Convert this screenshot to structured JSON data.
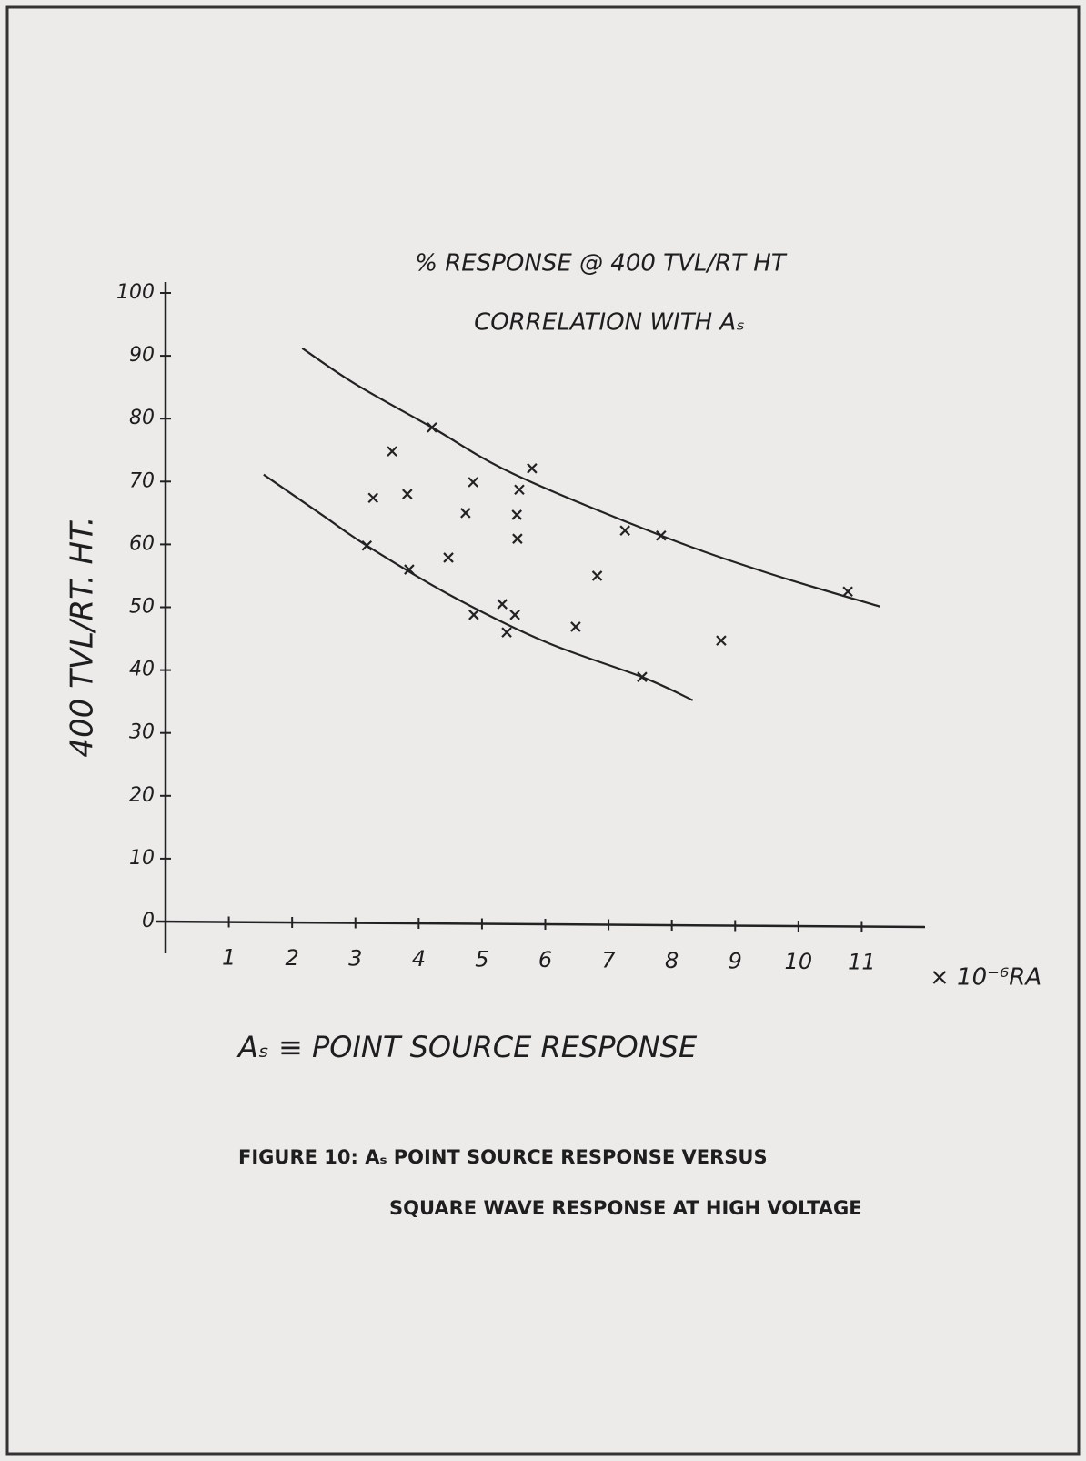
{
  "chart_data": {
    "type": "scatter",
    "title": "% RESPONSE @ 400 TVL/RT HT",
    "subtitle": "CORRELATION WITH Aₛ",
    "y_label": "400 TVL/RT. HT.",
    "x_label": "Aₛ ≡ POINT SOURCE RESPONSE",
    "x_unit": "× 10⁻⁶RA",
    "caption": [
      "FIGURE 10: Aₛ POINT SOURCE RESPONSE VERSUS",
      "SQUARE WAVE RESPONSE AT HIGH VOLTAGE"
    ],
    "xlim": [
      0,
      12
    ],
    "ylim": [
      0,
      100
    ],
    "xticks": [
      1,
      2,
      3,
      4,
      5,
      6,
      7,
      8,
      9,
      10,
      11
    ],
    "yticks": [
      0,
      10,
      20,
      30,
      40,
      50,
      60,
      70,
      80,
      90,
      100
    ],
    "color": "#222222",
    "series": [
      {
        "type": "scatter",
        "x": [
          3.28,
          3.58,
          3.82,
          4.21,
          4.47,
          4.74,
          4.86,
          4.87,
          5.32,
          5.39,
          5.52,
          5.55,
          5.56,
          5.59,
          5.79,
          6.48,
          6.82,
          7.26,
          7.53,
          7.83,
          8.78,
          10.78,
          3.18,
          3.85
        ],
        "values": [
          67.4,
          74.8,
          68.0,
          78.6,
          57.9,
          65.0,
          69.9,
          48.8,
          50.5,
          46.0,
          48.8,
          64.7,
          60.9,
          68.7,
          72.1,
          46.9,
          55.0,
          62.2,
          38.9,
          61.4,
          44.7,
          52.5,
          59.8,
          56.0
        ]
      },
      {
        "type": "line",
        "x": [
          2.16,
          3,
          4.21,
          5.5,
          7.83,
          9.5,
          11.29
        ],
        "values": [
          91.2,
          85.5,
          78.6,
          71.2,
          61.4,
          55.5,
          50.1
        ]
      },
      {
        "type": "line",
        "x": [
          1.55,
          2.5,
          3.18,
          4.5,
          6,
          7.53,
          8.33
        ],
        "values": [
          71.1,
          64.5,
          59.8,
          51.9,
          44.5,
          38.9,
          35.2
        ]
      }
    ]
  }
}
